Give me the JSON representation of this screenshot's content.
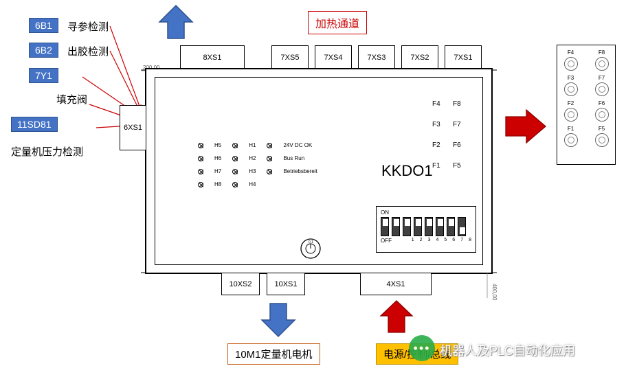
{
  "top_heating_label": "加热通道",
  "blue_arrow_color": "#4472c4",
  "red_arrow_color": "#cc0000",
  "tags": {
    "t1": "6B1",
    "t1_label": "寻参检测",
    "t2": "6B2",
    "t2_label": "出胶检测",
    "t3": "7Y1",
    "t3_label": "填充阀",
    "t4": "11SD81",
    "t4_label": "定量机压力检测"
  },
  "connectors_top": [
    "8XS1",
    "7XS5",
    "7XS4",
    "7XS3",
    "7XS2",
    "7XS1"
  ],
  "connector_left": "6XS1",
  "connectors_bottom": [
    "10XS2",
    "10XS1",
    "4XS1"
  ],
  "device_name": "KKDO1",
  "led_cols": {
    "c1": [
      "H5",
      "H6",
      "H7",
      "H8"
    ],
    "c2": [
      "H1",
      "H2",
      "H3",
      "H4"
    ],
    "c3": [
      "24V DC OK",
      "Bus Run",
      "Betriebsbereit"
    ]
  },
  "fp_labels": [
    "F4",
    "F3",
    "F2",
    "F1",
    "F8",
    "F7",
    "F6",
    "F5"
  ],
  "dip": {
    "on": "ON",
    "off": "OFF",
    "positions": [
      "up",
      "up",
      "up",
      "up",
      "up",
      "up",
      "up",
      "down"
    ],
    "nums": [
      "1",
      "2",
      "3",
      "4",
      "5",
      "6",
      "7",
      "8"
    ]
  },
  "bottom_red_label": "10M1定量机电机",
  "bottom_yellow_label": "电源/控制/总线",
  "side_panel_labels": [
    "F4",
    "F8",
    "F3",
    "F7",
    "F2",
    "F6",
    "F1",
    "F5"
  ],
  "watermark": "机器人及PLC自动化应用",
  "dims": {
    "top": "200,00",
    "bottom": "400,00"
  }
}
